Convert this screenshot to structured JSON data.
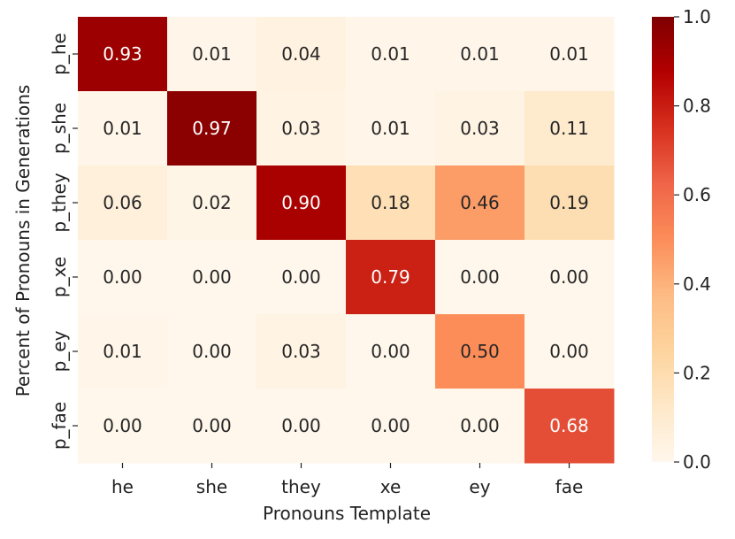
{
  "chart_data": {
    "type": "heatmap",
    "x_categories": [
      "he",
      "she",
      "they",
      "xe",
      "ey",
      "fae"
    ],
    "y_categories": [
      "p_he",
      "p_she",
      "p_they",
      "p_xe",
      "p_ey",
      "p_fae"
    ],
    "values": [
      [
        0.93,
        0.01,
        0.04,
        0.01,
        0.01,
        0.01
      ],
      [
        0.01,
        0.97,
        0.03,
        0.01,
        0.03,
        0.11
      ],
      [
        0.06,
        0.02,
        0.9,
        0.18,
        0.46,
        0.19
      ],
      [
        0.0,
        0.0,
        0.0,
        0.79,
        0.0,
        0.0
      ],
      [
        0.01,
        0.0,
        0.03,
        0.0,
        0.5,
        0.0
      ],
      [
        0.0,
        0.0,
        0.0,
        0.0,
        0.0,
        0.68
      ]
    ],
    "value_labels": [
      [
        "0.93",
        "0.01",
        "0.04",
        "0.01",
        "0.01",
        "0.01"
      ],
      [
        "0.01",
        "0.97",
        "0.03",
        "0.01",
        "0.03",
        "0.11"
      ],
      [
        "0.06",
        "0.02",
        "0.90",
        "0.18",
        "0.46",
        "0.19"
      ],
      [
        "0.00",
        "0.00",
        "0.00",
        "0.79",
        "0.00",
        "0.00"
      ],
      [
        "0.01",
        "0.00",
        "0.03",
        "0.00",
        "0.50",
        "0.00"
      ],
      [
        "0.00",
        "0.00",
        "0.00",
        "0.00",
        "0.00",
        "0.68"
      ]
    ],
    "xlabel": "Pronouns Template",
    "ylabel": "Percent of Pronouns in Generations",
    "colormap": "OrRd",
    "vmin": 0.0,
    "vmax": 1.0,
    "colorbar_ticks": [
      "0.0",
      "0.2",
      "0.4",
      "0.6",
      "0.8",
      "1.0"
    ],
    "colorbar_tick_values": [
      0.0,
      0.2,
      0.4,
      0.6,
      0.8,
      1.0
    ],
    "annotation_text_colors": {
      "dark_bg": "#ffffff",
      "light_bg": "#262626"
    }
  }
}
